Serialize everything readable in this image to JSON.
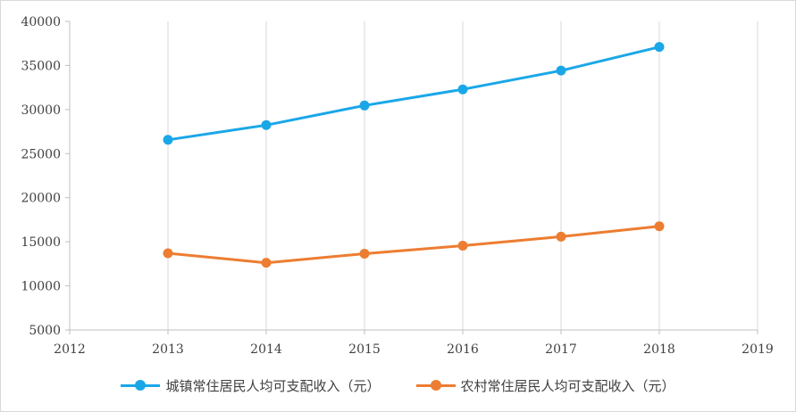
{
  "chart_data": {
    "type": "line",
    "title": "",
    "xlabel": "",
    "ylabel": "",
    "xlim": [
      2012,
      2019
    ],
    "ylim": [
      5000,
      40000
    ],
    "x_ticks": [
      2012,
      2013,
      2014,
      2015,
      2016,
      2017,
      2018,
      2019
    ],
    "y_ticks": [
      5000,
      10000,
      15000,
      20000,
      25000,
      30000,
      35000,
      40000
    ],
    "grid": "vertical",
    "legend_position": "bottom",
    "x": [
      2013,
      2014,
      2015,
      2016,
      2017,
      2018
    ],
    "series": [
      {
        "name": "城镇常住居民人均可支配收入（元）",
        "color": "#1aa7e8",
        "values": [
          26570,
          28240,
          30460,
          32290,
          34420,
          37100
        ]
      },
      {
        "name": "农村常住居民人均可支配收入（元）",
        "color": "#ed7d31",
        "values": [
          13700,
          12620,
          13650,
          14560,
          15580,
          16760
        ]
      }
    ]
  }
}
